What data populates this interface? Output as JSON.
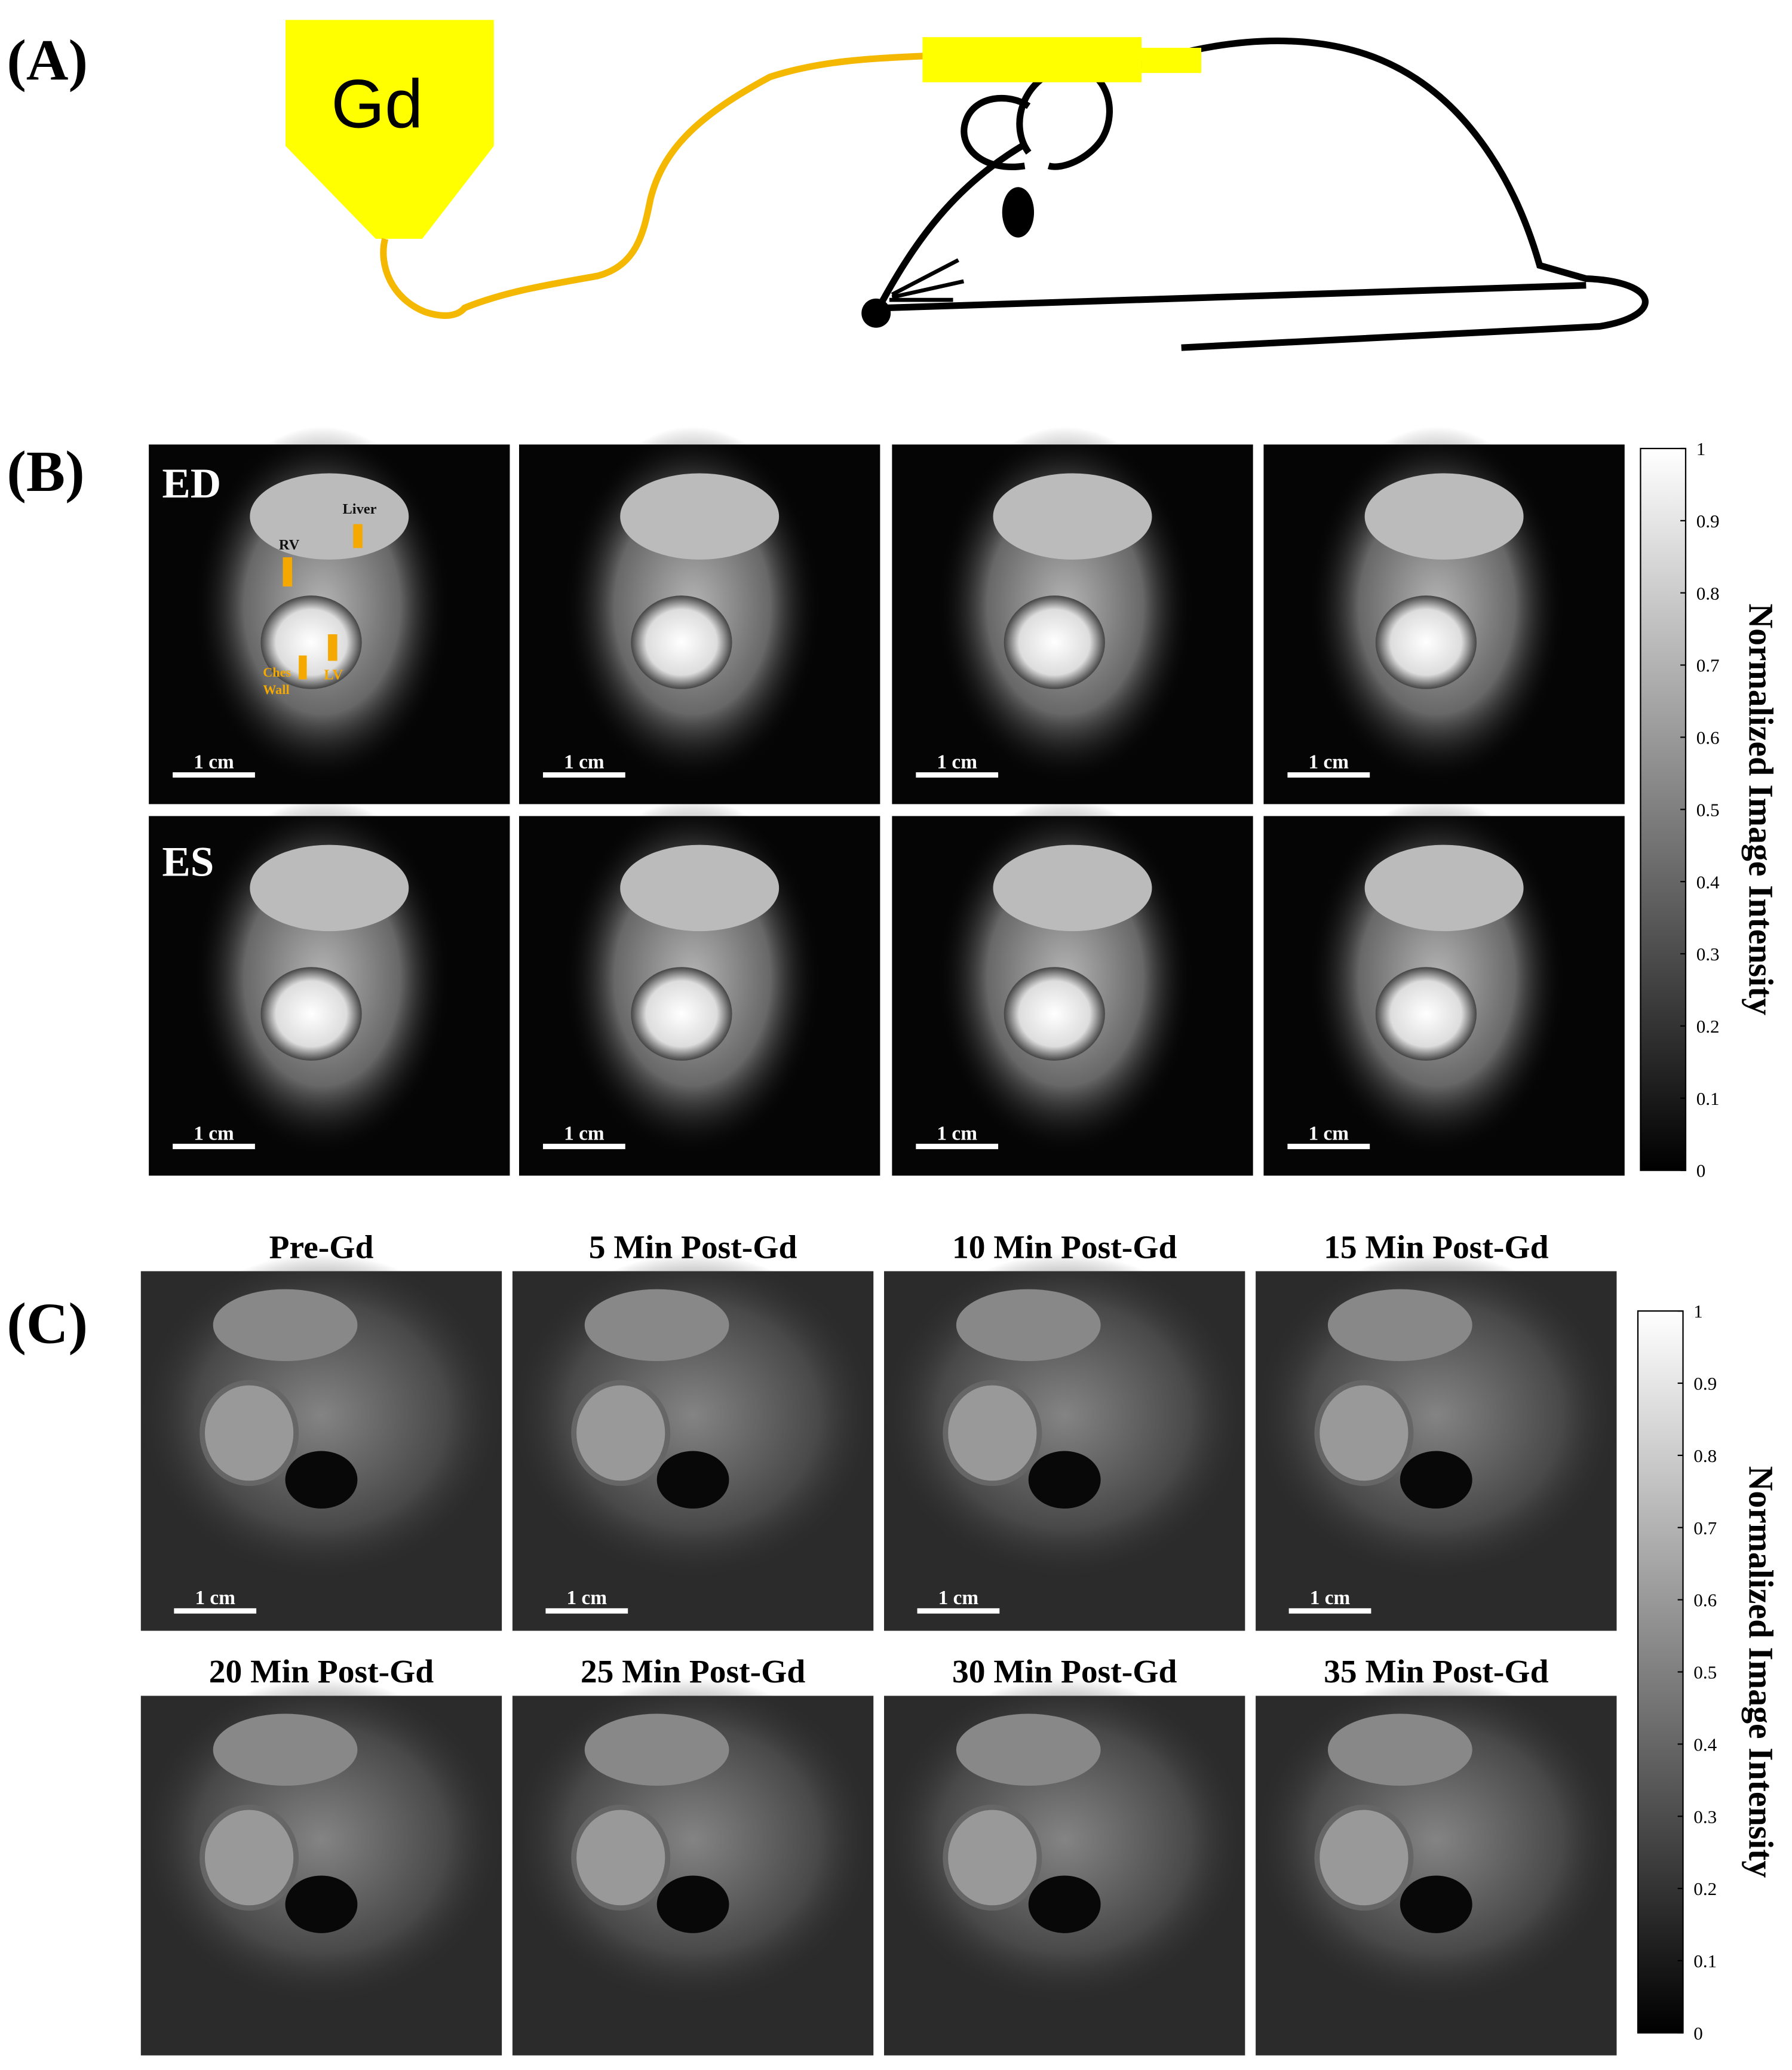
{
  "panel_a": {
    "label": "(A)",
    "syringe_label": "Gd"
  },
  "panel_b": {
    "label": "(B)",
    "row_labels": [
      "ED",
      "ES"
    ],
    "annotations": {
      "liver": "Liver",
      "rv": "RV",
      "chest_1": "Ches",
      "chest_2": "Wall",
      "lv": "LV"
    },
    "scale_bars": [
      "1 cm",
      "1 cm",
      "1 cm",
      "1 cm",
      "1 cm",
      "1 cm",
      "1 cm",
      "1 cm"
    ],
    "colorbar": {
      "label": "Normalized Image Intensity",
      "ticks": [
        0,
        0.1,
        0.2,
        0.3,
        0.4,
        0.5,
        0.6,
        0.7,
        0.8,
        0.9,
        1
      ]
    }
  },
  "panel_c": {
    "label": "(C)",
    "titles": [
      "Pre-Gd",
      "5 Min Post-Gd",
      "10 Min Post-Gd",
      "15 Min Post-Gd",
      "20 Min Post-Gd",
      "25 Min Post-Gd",
      "30 Min Post-Gd",
      "35 Min Post-Gd"
    ],
    "scale_bars": [
      "1 cm",
      "1 cm",
      "1 cm",
      "1 cm"
    ],
    "colorbar": {
      "label": "Normalized Image Intensity",
      "ticks": [
        0,
        0.1,
        0.2,
        0.3,
        0.4,
        0.5,
        0.6,
        0.7,
        0.8,
        0.9,
        1
      ]
    }
  }
}
